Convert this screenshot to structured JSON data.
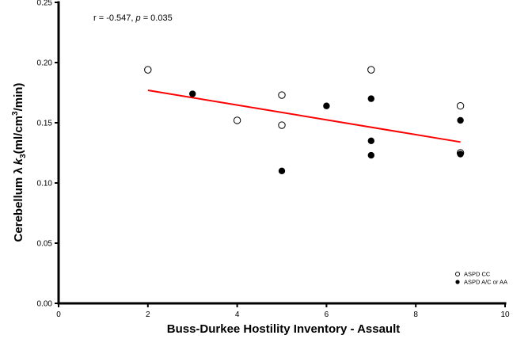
{
  "chart_data": {
    "type": "scatter",
    "xlabel": "Buss-Durkee Hostility Inventory - Assault",
    "ylabel": {
      "main": "Cerebellum λ",
      "k": "k",
      "k_sub": "3",
      "unit_open": "(ml/cm",
      "unit_sup": "3",
      "unit_close": "/min)"
    },
    "xlim": [
      0,
      10
    ],
    "ylim": [
      0,
      0.25
    ],
    "x_ticks": [
      "0",
      "2",
      "4",
      "6",
      "8",
      "10"
    ],
    "y_ticks": [
      "0.00",
      "0.05",
      "0.10",
      "0.15",
      "0.20",
      "0.25"
    ],
    "grid": false,
    "legend_position": "bottom-right",
    "annotation": {
      "r_text": "r = -0.547, ",
      "p_symbol": "p",
      "p_text": " = 0.035"
    },
    "series": [
      {
        "name": "ASPD CC",
        "marker": "open-circle",
        "points": [
          {
            "x": 2,
            "y": 0.194
          },
          {
            "x": 4,
            "y": 0.152
          },
          {
            "x": 5,
            "y": 0.173
          },
          {
            "x": 5,
            "y": 0.148
          },
          {
            "x": 7,
            "y": 0.194
          },
          {
            "x": 9,
            "y": 0.164
          },
          {
            "x": 9,
            "y": 0.125
          }
        ]
      },
      {
        "name": "ASPD A/C or AA",
        "marker": "filled-circle",
        "points": [
          {
            "x": 3,
            "y": 0.174
          },
          {
            "x": 5,
            "y": 0.11
          },
          {
            "x": 6,
            "y": 0.164
          },
          {
            "x": 7,
            "y": 0.17
          },
          {
            "x": 7,
            "y": 0.135
          },
          {
            "x": 7,
            "y": 0.123
          },
          {
            "x": 9,
            "y": 0.152
          },
          {
            "x": 9,
            "y": 0.124
          }
        ]
      }
    ],
    "fit_line": {
      "x": [
        2,
        9
      ],
      "y": [
        0.177,
        0.134
      ],
      "color": "#ff0000"
    }
  }
}
